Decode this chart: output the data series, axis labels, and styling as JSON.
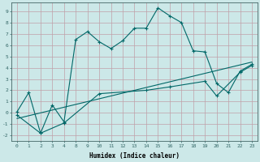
{
  "xlabel": "Humidex (Indice chaleur)",
  "bg_color": "#cce8e8",
  "grid_color": "#c0a0a8",
  "line_color": "#006868",
  "ylim": [
    -2.5,
    9.8
  ],
  "xlim": [
    -0.8,
    23.8
  ],
  "yticks": [
    -2,
    -1,
    0,
    1,
    2,
    3,
    4,
    5,
    6,
    7,
    8,
    9
  ],
  "xticks": [
    0,
    1,
    2,
    3,
    4,
    8,
    9,
    10,
    11,
    12,
    13,
    14,
    15,
    16,
    17,
    18,
    19,
    20,
    21,
    22,
    23
  ],
  "line1_x": [
    0,
    1,
    2,
    3,
    4,
    8,
    9,
    10,
    11,
    12,
    13,
    14,
    15,
    16,
    17,
    18,
    19,
    20,
    21,
    22,
    23
  ],
  "line1_y": [
    0.1,
    1.8,
    -1.8,
    0.7,
    -0.8,
    6.5,
    7.2,
    6.3,
    5.7,
    6.4,
    7.5,
    7.5,
    9.3,
    8.6,
    8.0,
    5.5,
    5.4,
    2.6,
    1.8,
    3.7,
    4.3
  ],
  "line2_x": [
    0,
    2,
    4,
    10,
    14,
    16,
    19,
    20,
    22,
    23
  ],
  "line2_y": [
    -0.2,
    -1.8,
    -0.9,
    1.7,
    2.0,
    2.3,
    2.8,
    1.5,
    3.6,
    4.2
  ],
  "line3_x": [
    0,
    23
  ],
  "line3_y": [
    -0.5,
    4.5
  ],
  "figsize": [
    3.2,
    2.0
  ],
  "dpi": 100
}
